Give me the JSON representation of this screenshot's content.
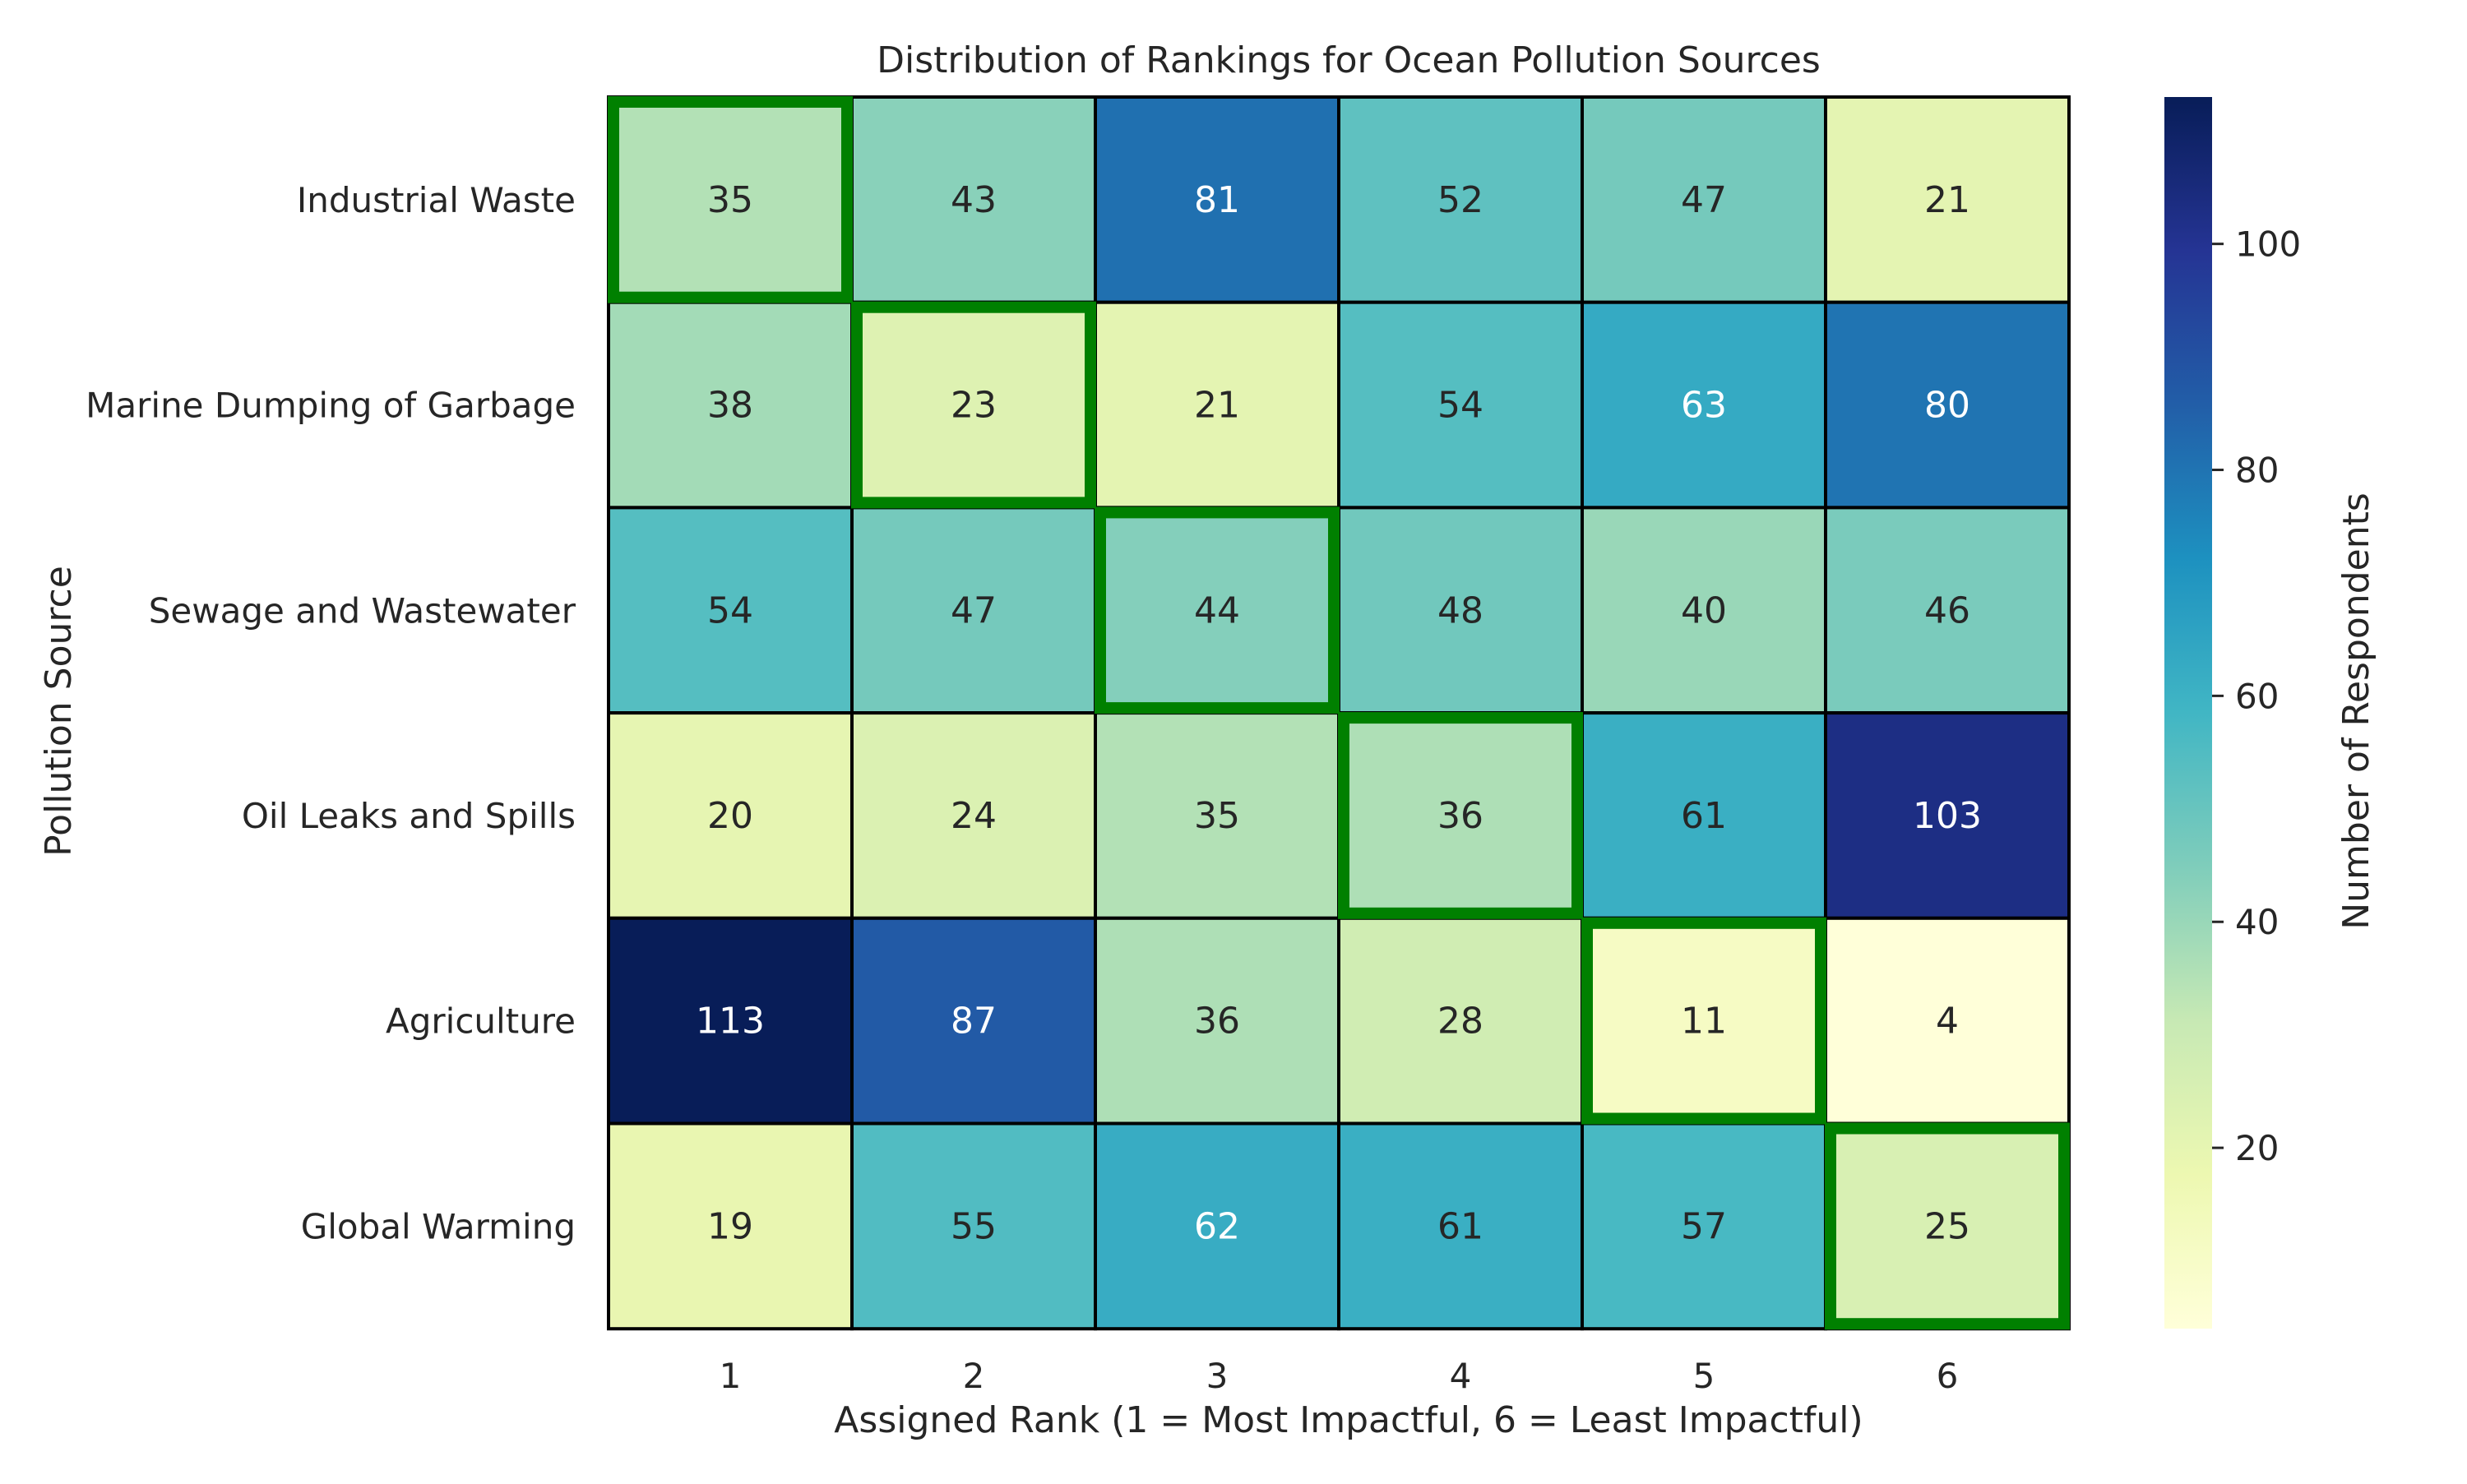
{
  "chart_data": {
    "type": "heatmap",
    "title": "Distribution of Rankings for Ocean Pollution Sources",
    "xlabel": "Assigned Rank (1 = Most Impactful, 6 = Least Impactful)",
    "ylabel": "Pollution Source",
    "x_categories": [
      "1",
      "2",
      "3",
      "4",
      "5",
      "6"
    ],
    "y_categories": [
      "Industrial Waste",
      "Marine Dumping of Garbage",
      "Sewage and Wastewater",
      "Oil Leaks and Spills",
      "Agriculture",
      "Global Warming"
    ],
    "values": [
      [
        35,
        43,
        81,
        52,
        47,
        21
      ],
      [
        38,
        23,
        21,
        54,
        63,
        80
      ],
      [
        54,
        47,
        44,
        48,
        40,
        46
      ],
      [
        20,
        24,
        35,
        36,
        61,
        103
      ],
      [
        113,
        87,
        36,
        28,
        11,
        4
      ],
      [
        19,
        55,
        62,
        61,
        57,
        25
      ]
    ],
    "highlighted_cells": [
      [
        0,
        0
      ],
      [
        1,
        1
      ],
      [
        2,
        2
      ],
      [
        3,
        3
      ],
      [
        4,
        4
      ],
      [
        5,
        5
      ]
    ],
    "highlight_color": "#008000",
    "colorbar": {
      "label": "Number of Respondents",
      "range": [
        4,
        113
      ],
      "ticks": [
        20,
        40,
        60,
        80,
        100
      ],
      "colormap": "YlGnBu"
    },
    "grid": false
  }
}
